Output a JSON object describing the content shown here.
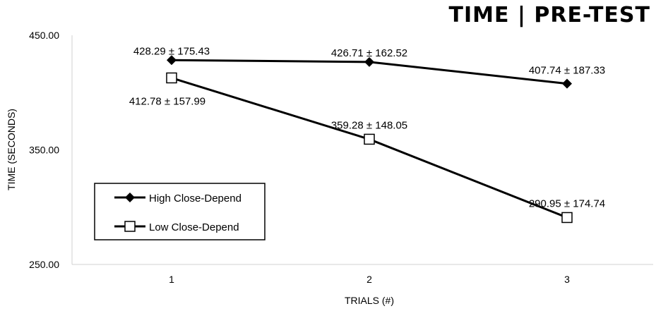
{
  "chart_data": {
    "type": "line",
    "title": "TIME | PRE-TEST",
    "xlabel": "TRIALS (#)",
    "ylabel": "TIME (SECONDS)",
    "x": [
      1,
      2,
      3
    ],
    "x_tick_labels": [
      "1",
      "2",
      "3"
    ],
    "ylim": [
      250,
      450
    ],
    "y_tick_labels": [
      "250.00",
      "350.00",
      "450.00"
    ],
    "y_ticks": [
      250,
      350,
      450
    ],
    "grid": false,
    "legend_position": "bottom-left",
    "series": [
      {
        "name": "High Close-Depend",
        "marker": "filled-diamond",
        "values": [
          428.29,
          426.71,
          407.74
        ],
        "labels": [
          "428.29 ± 175.43",
          "426.71 ± 162.52",
          "407.74 ± 187.33"
        ]
      },
      {
        "name": "Low Close-Depend",
        "marker": "open-square",
        "values": [
          412.78,
          359.28,
          290.95
        ],
        "labels": [
          "412.78 ± 157.99",
          "359.28 ± 148.05",
          "290.95 ± 174.74"
        ]
      }
    ],
    "colors": {
      "line": "#000000",
      "axis": "#d0d0d0",
      "marker_fill_open": "#ffffff"
    }
  }
}
